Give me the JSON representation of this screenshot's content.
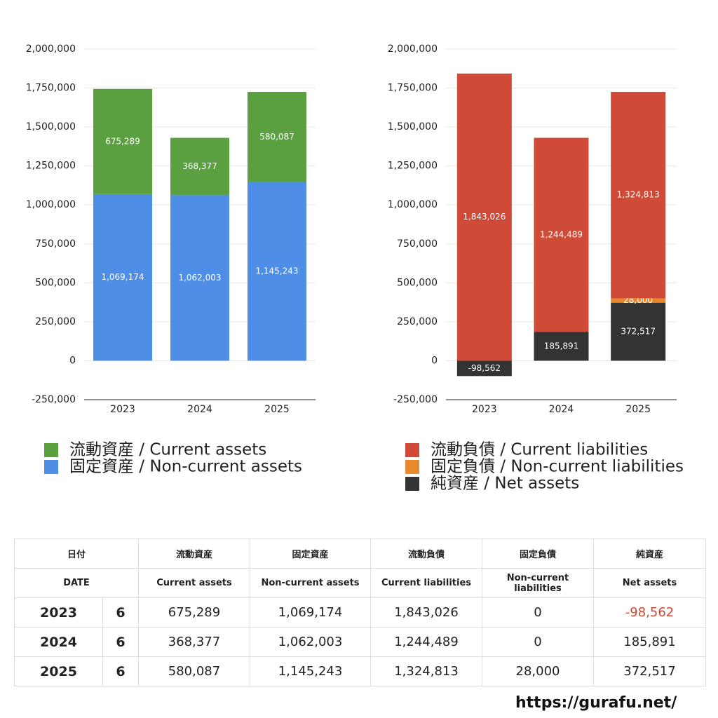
{
  "chart_data": [
    {
      "type": "stacked_bar",
      "categories": [
        "2023",
        "2024",
        "2025"
      ],
      "series": [
        {
          "name": "固定資産 / Non-current assets",
          "color": "#4f8ee6",
          "values": [
            1069174,
            1062003,
            1145243
          ],
          "value_labels": [
            "1,069,174",
            "1,062,003",
            "1,145,243"
          ]
        },
        {
          "name": "流動資産 / Current assets",
          "color": "#5aa040",
          "values": [
            675289,
            368377,
            580087
          ],
          "value_labels": [
            "675,289",
            "368,377",
            "580,087"
          ]
        }
      ],
      "ylim": [
        -250000,
        2000000
      ],
      "yticks": [
        {
          "value": -250000,
          "label": "-250,000"
        },
        0,
        {
          "value": 250000,
          "label": "250,000"
        },
        {
          "value": 500000,
          "label": "500,000"
        },
        {
          "value": 750000,
          "label": "750,000"
        },
        {
          "value": 1000000,
          "label": "1,000,000"
        },
        {
          "value": 1250000,
          "label": "1,250,000"
        },
        {
          "value": 1500000,
          "label": "1,500,000"
        },
        {
          "value": 1750000,
          "label": "1,750,000"
        },
        {
          "value": 2000000,
          "label": "2,000,000"
        }
      ],
      "grid": true,
      "legend": "bottom"
    },
    {
      "type": "stacked_bar",
      "categories": [
        "2023",
        "2024",
        "2025"
      ],
      "series": [
        {
          "name": "純資産 / Net assets",
          "color": "#333333",
          "values": [
            -98562,
            185891,
            372517
          ],
          "value_labels": [
            "-98,562",
            "185,891",
            "372,517"
          ]
        },
        {
          "name": "固定負債 / Non-current liabilities",
          "color": "#e8892e",
          "values": [
            0,
            0,
            28000
          ],
          "value_labels": [
            null,
            null,
            "28,000"
          ]
        },
        {
          "name": "流動負債 / Current liabilities",
          "color": "#cf4a37",
          "values": [
            1843026,
            1244489,
            1324813
          ],
          "value_labels": [
            "1,843,026",
            "1,244,489",
            "1,324,813"
          ]
        }
      ],
      "ylim": [
        -250000,
        2000000
      ],
      "yticks": [
        {
          "value": -250000,
          "label": "-250,000"
        },
        0,
        {
          "value": 250000,
          "label": "250,000"
        },
        {
          "value": 500000,
          "label": "500,000"
        },
        {
          "value": 750000,
          "label": "750,000"
        },
        {
          "value": 1000000,
          "label": "1,000,000"
        },
        {
          "value": 1250000,
          "label": "1,250,000"
        },
        {
          "value": 1500000,
          "label": "1,500,000"
        },
        {
          "value": 1750000,
          "label": "1,750,000"
        },
        {
          "value": 2000000,
          "label": "2,000,000"
        }
      ],
      "grid": true,
      "legend": "bottom"
    }
  ],
  "table": {
    "header_ja": [
      "日付",
      "流動資産",
      "固定資産",
      "流動負債",
      "固定負債",
      "純資産"
    ],
    "header_en": [
      "DATE",
      "Current assets",
      "Non-current assets",
      "Current liabilities",
      "Non-current liabilities",
      "Net assets"
    ],
    "rows": [
      [
        "2023",
        "6",
        "675,289",
        "1,069,174",
        "1,843,026",
        "0",
        "-98,562"
      ],
      [
        "2024",
        "6",
        "368,377",
        "1,062,003",
        "1,244,489",
        "0",
        "185,891"
      ],
      [
        "2025",
        "6",
        "580,087",
        "1,145,243",
        "1,324,813",
        "28,000",
        "372,517"
      ]
    ]
  },
  "footer": "https://gurafu.net/"
}
